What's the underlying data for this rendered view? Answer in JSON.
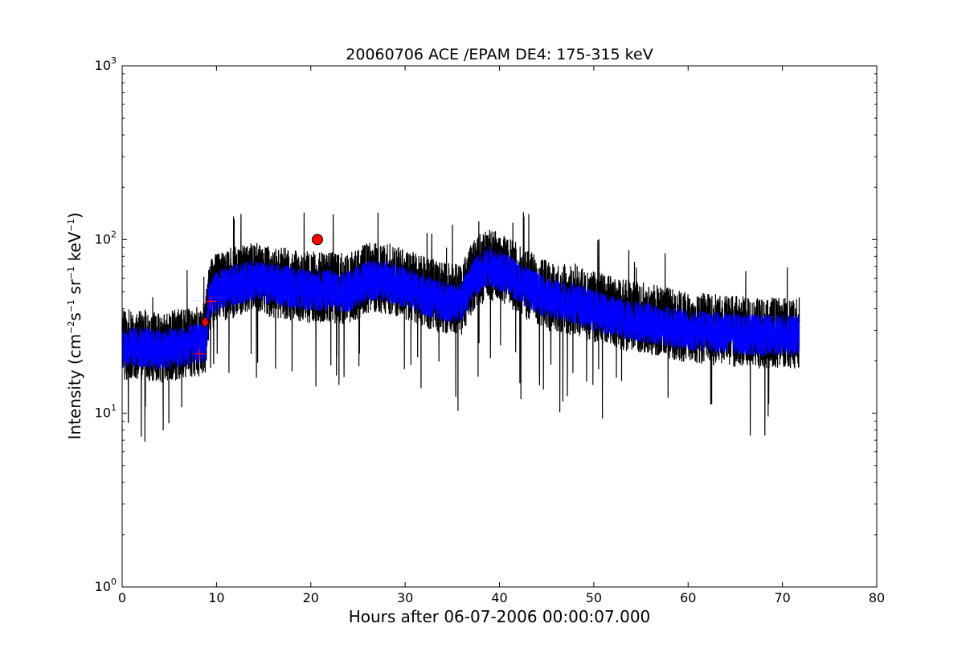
{
  "chart_data": {
    "type": "line",
    "title": "20060706 ACE /EPAM DE4: 175-315 keV",
    "xlabel": "Hours after 06-07-2006 00:00:07.000",
    "ylabel_parts": {
      "prefix": "Intensity (cm",
      "exp1": "−2",
      "mid1": "s",
      "exp2": "−1",
      "mid2": " sr",
      "exp3": "−1",
      "mid3": " keV",
      "exp4": "−1",
      "suffix": ")"
    },
    "xlim": [
      0,
      80
    ],
    "ylim": [
      1,
      1000
    ],
    "yscale": "log",
    "grid": false,
    "x_ticks": [
      0,
      10,
      20,
      30,
      40,
      50,
      60,
      70,
      80
    ],
    "x_tick_labels": [
      "0",
      "10",
      "20",
      "30",
      "40",
      "50",
      "60",
      "70",
      "80"
    ],
    "y_ticks": [
      1,
      10,
      100,
      1000
    ],
    "y_tick_labels": [
      {
        "base": "10",
        "exp": "0"
      },
      {
        "base": "10",
        "exp": "1"
      },
      {
        "base": "10",
        "exp": "2"
      },
      {
        "base": "10",
        "exp": "3"
      }
    ],
    "series": [
      {
        "color": "#000000",
        "style": "raw-noisy-line",
        "x": [
          0,
          2,
          4,
          6,
          8,
          8.8,
          9.3,
          10,
          12,
          14,
          16,
          18,
          20,
          22,
          24,
          26,
          28,
          30,
          32,
          34,
          36,
          37.5,
          39,
          41,
          43,
          45,
          48,
          50,
          53,
          56,
          60,
          64,
          68,
          71.8
        ],
        "y": [
          25,
          25,
          24,
          25,
          26,
          27,
          48,
          52,
          57,
          60,
          57,
          55,
          53,
          53,
          52,
          60,
          60,
          55,
          50,
          46,
          45,
          65,
          72,
          64,
          55,
          48,
          45,
          41,
          37,
          35,
          31,
          30,
          29,
          29
        ]
      },
      {
        "color": "#0000ff",
        "style": "smoothed-line",
        "x": [
          0,
          2,
          4,
          6,
          8,
          8.8,
          9.3,
          10,
          12,
          14,
          16,
          18,
          20,
          22,
          24,
          26,
          28,
          30,
          32,
          34,
          36,
          37.5,
          39,
          41,
          43,
          45,
          48,
          50,
          53,
          56,
          60,
          64,
          68,
          71.8
        ],
        "y": [
          24,
          24,
          23,
          24,
          25,
          26,
          45,
          50,
          55,
          58,
          55,
          53,
          51,
          51,
          50,
          58,
          58,
          53,
          48,
          44,
          43,
          62,
          70,
          62,
          53,
          46,
          43,
          39,
          35,
          33,
          30,
          29,
          28,
          28
        ]
      }
    ],
    "markers": [
      {
        "shape": "circle",
        "x": 20.7,
        "y": 100,
        "color": "#ff0000"
      },
      {
        "shape": "diamond",
        "x": 8.8,
        "y": 33.5,
        "color": "#ff0000"
      },
      {
        "shape": "plus",
        "x": 9.4,
        "y": 44,
        "color": "#ff0000"
      },
      {
        "shape": "plus",
        "x": 8.2,
        "y": 22,
        "color": "#ff0000"
      }
    ]
  }
}
